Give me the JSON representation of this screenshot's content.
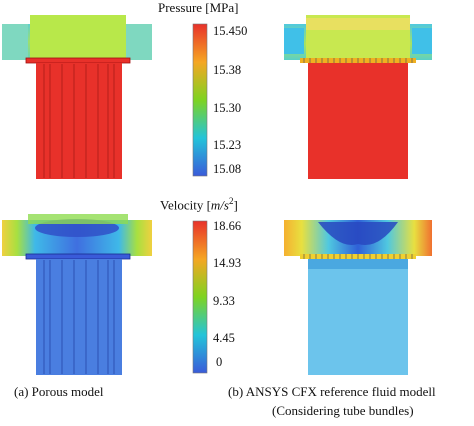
{
  "pressure_colorbar": {
    "title": "Pressure [MPa]",
    "ticks": [
      "15.450",
      "15.38",
      "15.30",
      "15.23",
      "15.08"
    ],
    "colors": [
      "#e8312a",
      "#f5a623",
      "#7ed321",
      "#23c4d9",
      "#3a5bd9"
    ]
  },
  "velocity_colorbar": {
    "title_prefix": "Velocity [",
    "title_unit": "m/s",
    "title_exp": "2",
    "title_suffix": "]",
    "ticks": [
      "18.66",
      "14.93",
      "9.33",
      "4.45",
      "0"
    ],
    "colors": [
      "#e8312a",
      "#f5a623",
      "#7ed321",
      "#23c4d9",
      "#3a5bd9"
    ]
  },
  "captions": {
    "left": "(a) Porous model",
    "right_line1": "(b)  ANSYS CFX reference fluid modell",
    "right_line2": "(Considering tube bundles)"
  }
}
